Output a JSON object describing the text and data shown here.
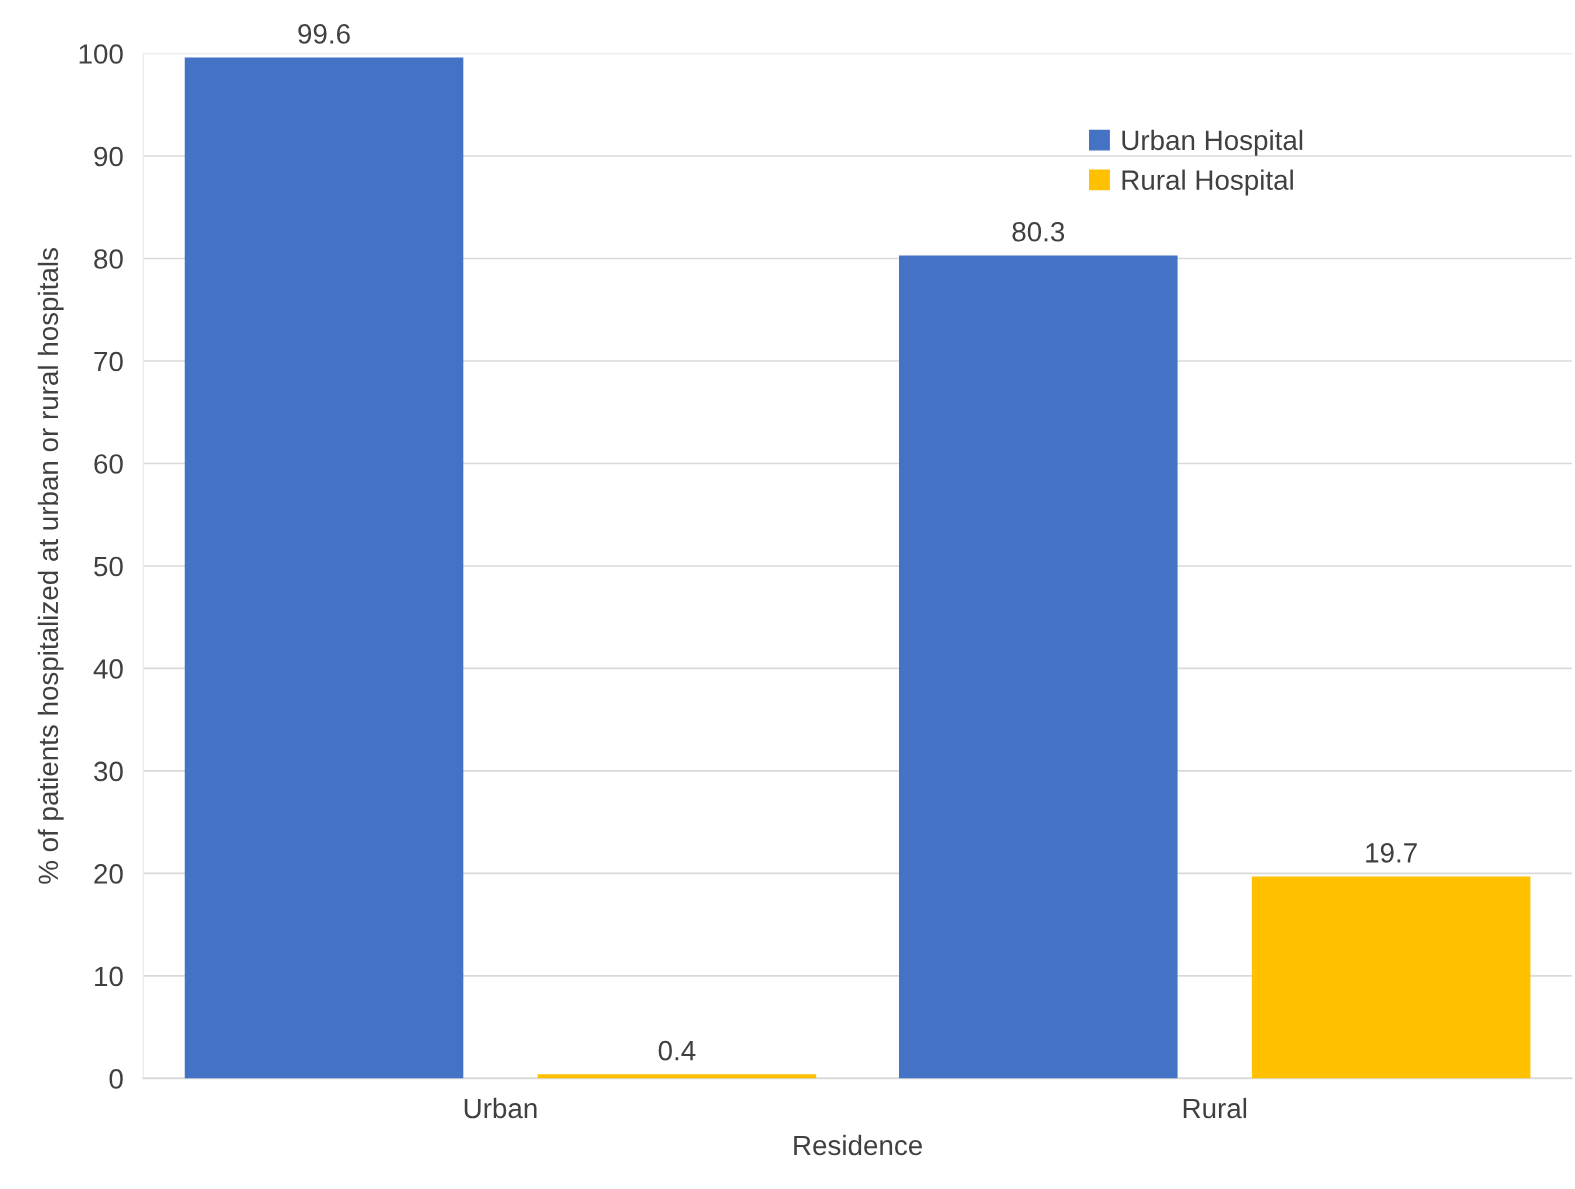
{
  "chart_data": {
    "type": "bar",
    "xlabel": "Residence",
    "ylabel": "% of patients hospitalized at urban or rural hospitals",
    "categories": [
      "Urban",
      "Rural"
    ],
    "series": [
      {
        "name": "Urban Hospital",
        "color": "#4472c4",
        "values": [
          99.6,
          80.3
        ]
      },
      {
        "name": "Rural Hospital",
        "color": "#ffc000",
        "values": [
          0.4,
          19.7
        ]
      }
    ],
    "ylim": [
      0,
      100
    ],
    "yticks": [
      0,
      10,
      20,
      30,
      40,
      50,
      60,
      70,
      80,
      90,
      100
    ],
    "grid": "y",
    "legend": "top right",
    "data_labels": true
  }
}
